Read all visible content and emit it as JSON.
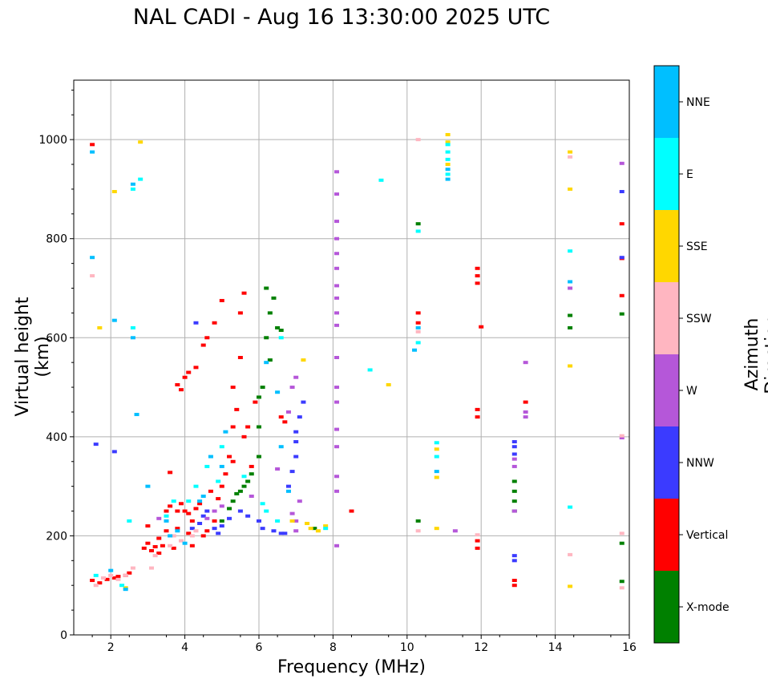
{
  "chart_data": {
    "type": "scatter",
    "title": "NAL CADI - Aug 16 13:30:00 2025 UTC",
    "xlabel": "Frequency (MHz)",
    "ylabel": "Virtual height (km)",
    "xlim": [
      1,
      16
    ],
    "ylim": [
      0,
      1120
    ],
    "xticks": [
      2,
      4,
      6,
      8,
      10,
      12,
      14,
      16
    ],
    "yticks": [
      0,
      200,
      400,
      600,
      800,
      1000
    ],
    "grid": true,
    "colorbar": {
      "label": "Azimuth Direction",
      "categories": [
        {
          "name": "X-mode",
          "color": "#008000"
        },
        {
          "name": "Vertical",
          "color": "#ff0000"
        },
        {
          "name": "NNW",
          "color": "#3b3bff"
        },
        {
          "name": "W",
          "color": "#b557d9"
        },
        {
          "name": "SSW",
          "color": "#ffb6c1"
        },
        {
          "name": "SSE",
          "color": "#ffd700"
        },
        {
          "name": "E",
          "color": "#00ffff"
        },
        {
          "name": "NNE",
          "color": "#00bfff"
        }
      ]
    },
    "series": [
      {
        "name": "Vertical",
        "points": [
          [
            1.5,
            990
          ],
          [
            1.5,
            110
          ],
          [
            1.7,
            105
          ],
          [
            1.9,
            112
          ],
          [
            2.1,
            115
          ],
          [
            2.2,
            118
          ],
          [
            2.4,
            120
          ],
          [
            2.5,
            125
          ],
          [
            2.9,
            175
          ],
          [
            3.0,
            185
          ],
          [
            3.0,
            220
          ],
          [
            3.1,
            170
          ],
          [
            3.2,
            178
          ],
          [
            3.3,
            195
          ],
          [
            3.4,
            180
          ],
          [
            3.5,
            210
          ],
          [
            3.5,
            250
          ],
          [
            3.6,
            260
          ],
          [
            3.7,
            175
          ],
          [
            3.8,
            250
          ],
          [
            3.8,
            215
          ],
          [
            3.9,
            265
          ],
          [
            4.0,
            250
          ],
          [
            4.1,
            245
          ],
          [
            4.1,
            205
          ],
          [
            4.2,
            230
          ],
          [
            4.3,
            255
          ],
          [
            4.4,
            265
          ],
          [
            4.5,
            200
          ],
          [
            4.6,
            210
          ],
          [
            4.7,
            290
          ],
          [
            4.8,
            230
          ],
          [
            4.9,
            275
          ],
          [
            5.0,
            300
          ],
          [
            5.1,
            325
          ],
          [
            5.2,
            360
          ],
          [
            5.3,
            420
          ],
          [
            5.3,
            500
          ],
          [
            5.4,
            455
          ],
          [
            5.5,
            560
          ],
          [
            5.5,
            650
          ],
          [
            5.6,
            690
          ],
          [
            3.6,
            328
          ],
          [
            3.8,
            505
          ],
          [
            3.9,
            495
          ],
          [
            4.0,
            520
          ],
          [
            4.1,
            530
          ],
          [
            4.3,
            540
          ],
          [
            4.5,
            585
          ],
          [
            4.6,
            600
          ],
          [
            4.8,
            630
          ],
          [
            5.0,
            675
          ],
          [
            5.3,
            350
          ],
          [
            5.6,
            400
          ],
          [
            5.7,
            420
          ],
          [
            5.9,
            470
          ],
          [
            6.6,
            440
          ],
          [
            6.7,
            430
          ],
          [
            8.5,
            250
          ],
          [
            10.3,
            650
          ],
          [
            10.3,
            630
          ],
          [
            11.9,
            740
          ],
          [
            11.9,
            725
          ],
          [
            11.9,
            710
          ],
          [
            11.9,
            455
          ],
          [
            11.9,
            440
          ],
          [
            11.9,
            190
          ],
          [
            11.9,
            175
          ],
          [
            12.0,
            622
          ],
          [
            12.9,
            100
          ],
          [
            12.9,
            110
          ],
          [
            13.2,
            470
          ],
          [
            15.8,
            830
          ],
          [
            15.8,
            760
          ],
          [
            15.8,
            685
          ],
          [
            5.8,
            340
          ],
          [
            4.2,
            180
          ],
          [
            3.3,
            165
          ]
        ]
      },
      {
        "name": "X-mode",
        "points": [
          [
            5.5,
            290
          ],
          [
            5.7,
            310
          ],
          [
            5.8,
            325
          ],
          [
            6.0,
            360
          ],
          [
            6.0,
            420
          ],
          [
            6.0,
            480
          ],
          [
            6.1,
            500
          ],
          [
            6.2,
            600
          ],
          [
            6.3,
            650
          ],
          [
            6.4,
            680
          ],
          [
            6.2,
            700
          ],
          [
            6.5,
            620
          ],
          [
            6.6,
            615
          ],
          [
            6.3,
            555
          ],
          [
            7.5,
            215
          ],
          [
            5.3,
            270
          ],
          [
            5.4,
            285
          ],
          [
            5.6,
            300
          ],
          [
            5.2,
            255
          ],
          [
            5.0,
            230
          ],
          [
            10.3,
            830
          ],
          [
            10.3,
            230
          ],
          [
            12.9,
            250
          ],
          [
            12.9,
            270
          ],
          [
            12.9,
            290
          ],
          [
            12.9,
            310
          ],
          [
            14.4,
            645
          ],
          [
            14.4,
            620
          ],
          [
            15.8,
            648
          ],
          [
            15.8,
            185
          ],
          [
            15.8,
            108
          ]
        ]
      },
      {
        "name": "NNW",
        "points": [
          [
            4.2,
            215
          ],
          [
            4.4,
            225
          ],
          [
            4.5,
            240
          ],
          [
            4.6,
            250
          ],
          [
            4.8,
            215
          ],
          [
            4.9,
            205
          ],
          [
            5.0,
            220
          ],
          [
            5.2,
            235
          ],
          [
            5.5,
            250
          ],
          [
            5.7,
            240
          ],
          [
            6.0,
            230
          ],
          [
            6.1,
            215
          ],
          [
            6.4,
            210
          ],
          [
            6.6,
            205
          ],
          [
            6.8,
            300
          ],
          [
            6.9,
            330
          ],
          [
            7.0,
            390
          ],
          [
            7.0,
            410
          ],
          [
            7.1,
            440
          ],
          [
            7.0,
            360
          ],
          [
            7.2,
            470
          ],
          [
            6.7,
            205
          ],
          [
            1.6,
            385
          ],
          [
            2.1,
            370
          ],
          [
            12.9,
            390
          ],
          [
            12.9,
            380
          ],
          [
            12.9,
            365
          ],
          [
            12.9,
            160
          ],
          [
            12.9,
            150
          ],
          [
            15.8,
            762
          ],
          [
            15.8,
            895
          ],
          [
            4.3,
            630
          ]
        ]
      },
      {
        "name": "W",
        "points": [
          [
            6.8,
            450
          ],
          [
            6.9,
            500
          ],
          [
            7.0,
            520
          ],
          [
            6.5,
            335
          ],
          [
            5.8,
            280
          ],
          [
            7.0,
            230
          ],
          [
            7.0,
            210
          ],
          [
            7.1,
            270
          ],
          [
            6.9,
            245
          ],
          [
            5.0,
            260
          ],
          [
            4.6,
            235
          ],
          [
            4.8,
            250
          ],
          [
            8.1,
            935
          ],
          [
            8.1,
            890
          ],
          [
            8.1,
            835
          ],
          [
            8.1,
            800
          ],
          [
            8.1,
            770
          ],
          [
            8.1,
            740
          ],
          [
            8.1,
            705
          ],
          [
            8.1,
            680
          ],
          [
            8.1,
            650
          ],
          [
            8.1,
            625
          ],
          [
            8.1,
            560
          ],
          [
            8.1,
            500
          ],
          [
            8.1,
            470
          ],
          [
            8.1,
            415
          ],
          [
            8.1,
            380
          ],
          [
            8.1,
            320
          ],
          [
            8.1,
            290
          ],
          [
            8.1,
            180
          ],
          [
            11.3,
            210
          ],
          [
            12.9,
            340
          ],
          [
            12.9,
            355
          ],
          [
            12.9,
            250
          ],
          [
            13.2,
            550
          ],
          [
            13.2,
            450
          ],
          [
            13.2,
            440
          ],
          [
            14.4,
            700
          ],
          [
            15.8,
            952
          ],
          [
            15.8,
            398
          ],
          [
            3.3,
            235
          ]
        ]
      },
      {
        "name": "SSW",
        "points": [
          [
            1.6,
            100
          ],
          [
            1.8,
            115
          ],
          [
            2.0,
            120
          ],
          [
            2.2,
            112
          ],
          [
            2.4,
            120
          ],
          [
            2.6,
            135
          ],
          [
            3.1,
            135
          ],
          [
            3.2,
            160
          ],
          [
            3.6,
            180
          ],
          [
            3.9,
            190
          ],
          [
            4.2,
            200
          ],
          [
            4.3,
            210
          ],
          [
            3.7,
            200
          ],
          [
            10.3,
            1000
          ],
          [
            10.3,
            612
          ],
          [
            10.3,
            210
          ],
          [
            11.9,
            202
          ],
          [
            14.4,
            965
          ],
          [
            14.4,
            162
          ],
          [
            15.8,
            402
          ],
          [
            15.8,
            205
          ],
          [
            15.8,
            95
          ],
          [
            1.5,
            725
          ]
        ]
      },
      {
        "name": "SSE",
        "points": [
          [
            2.8,
            995
          ],
          [
            1.7,
            620
          ],
          [
            2.4,
            95
          ],
          [
            2.1,
            895
          ],
          [
            7.4,
            215
          ],
          [
            7.6,
            210
          ],
          [
            7.8,
            220
          ],
          [
            7.3,
            225
          ],
          [
            9.5,
            505
          ],
          [
            10.8,
            375
          ],
          [
            10.8,
            318
          ],
          [
            10.8,
            215
          ],
          [
            11.1,
            1010
          ],
          [
            11.1,
            995
          ],
          [
            11.1,
            950
          ],
          [
            14.4,
            975
          ],
          [
            14.4,
            900
          ],
          [
            14.4,
            543
          ],
          [
            14.4,
            98
          ],
          [
            6.9,
            230
          ],
          [
            7.2,
            555
          ]
        ]
      },
      {
        "name": "E",
        "points": [
          [
            2.6,
            900
          ],
          [
            2.6,
            620
          ],
          [
            2.5,
            230
          ],
          [
            2.3,
            100
          ],
          [
            1.6,
            120
          ],
          [
            3.5,
            240
          ],
          [
            3.7,
            270
          ],
          [
            4.1,
            270
          ],
          [
            4.3,
            300
          ],
          [
            4.6,
            340
          ],
          [
            4.9,
            310
          ],
          [
            5.0,
            380
          ],
          [
            5.6,
            320
          ],
          [
            6.1,
            265
          ],
          [
            6.2,
            250
          ],
          [
            6.5,
            230
          ],
          [
            6.6,
            600
          ],
          [
            7.8,
            215
          ],
          [
            9.0,
            535
          ],
          [
            9.3,
            918
          ],
          [
            10.3,
            815
          ],
          [
            10.3,
            590
          ],
          [
            10.8,
            388
          ],
          [
            10.8,
            360
          ],
          [
            11.1,
            990
          ],
          [
            11.1,
            975
          ],
          [
            11.1,
            960
          ],
          [
            11.1,
            930
          ],
          [
            14.4,
            775
          ],
          [
            14.4,
            258
          ],
          [
            2.8,
            920
          ]
        ]
      },
      {
        "name": "NNE",
        "points": [
          [
            1.5,
            975
          ],
          [
            1.5,
            762
          ],
          [
            2.6,
            910
          ],
          [
            2.6,
            600
          ],
          [
            2.7,
            445
          ],
          [
            2.1,
            635
          ],
          [
            2.0,
            130
          ],
          [
            2.4,
            92
          ],
          [
            3.5,
            230
          ],
          [
            3.6,
            200
          ],
          [
            3.8,
            210
          ],
          [
            4.0,
            185
          ],
          [
            4.4,
            270
          ],
          [
            4.5,
            280
          ],
          [
            4.7,
            360
          ],
          [
            5.0,
            340
          ],
          [
            5.1,
            410
          ],
          [
            6.2,
            550
          ],
          [
            6.5,
            490
          ],
          [
            6.6,
            380
          ],
          [
            6.8,
            290
          ],
          [
            10.2,
            575
          ],
          [
            10.3,
            620
          ],
          [
            10.8,
            330
          ],
          [
            11.1,
            920
          ],
          [
            11.1,
            940
          ],
          [
            14.4,
            713
          ],
          [
            3.0,
            300
          ]
        ]
      }
    ]
  }
}
